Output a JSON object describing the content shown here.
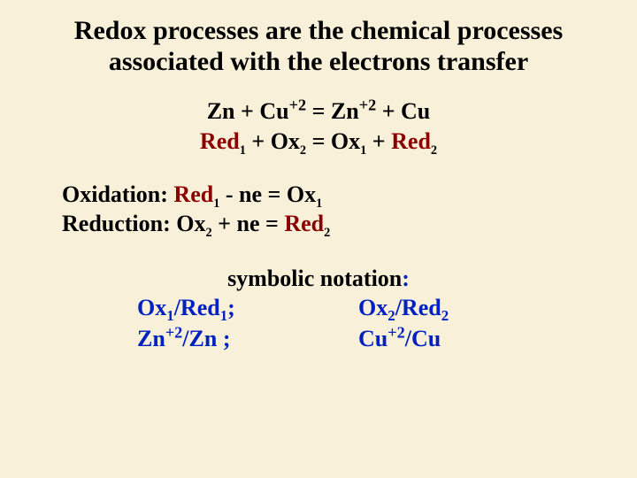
{
  "title_l1": "Redox processes are the chemical processes",
  "title_l2": "associated with the electrons transfer",
  "eq1": {
    "zn": "Zn",
    "plus1": " + ",
    "cu": "Cu",
    "sup": "+2",
    "eq": " = ",
    "zn2": "Zn",
    "plus2": " + ",
    "cu2": "Cu"
  },
  "eq2": {
    "red": "Red",
    "s1": "1",
    "plus1": " + ",
    "ox": "Ox",
    "s2": "2",
    "eq": " =  ",
    "ox2": "Ox",
    "s3": "1",
    "plus2": " + ",
    "red2": "Red",
    "s4": "2"
  },
  "ox_label": "Oxidation: ",
  "ox_eq": {
    "red": "Red",
    "s1": "1",
    "mid": " - ne =  ",
    "ox": "Ox",
    "s2": "1"
  },
  "rd_label": "Reduction: ",
  "rd_eq": {
    "ox": "Ox",
    "s1": "2",
    "mid": " + ne =  ",
    "red": "Red",
    "s2": "2"
  },
  "sym_title": "symbolic notation",
  "colon": ":",
  "pair1": {
    "ox": "Ox",
    "s1": "1",
    "slash": "/",
    "red": "Red",
    "s2": "1",
    "semi": ";"
  },
  "pair2": {
    "ox": "Ox",
    "s1": "2",
    "slash": "/",
    "red": "Red",
    "s2": "2"
  },
  "pair3": {
    "zn": "Zn",
    "sup": "+2",
    "slash": "/Zn",
    "sp": " ",
    "semi": ";"
  },
  "pair4": {
    "cu": "Cu",
    "sup": "+2",
    "slash": "/Cu"
  }
}
